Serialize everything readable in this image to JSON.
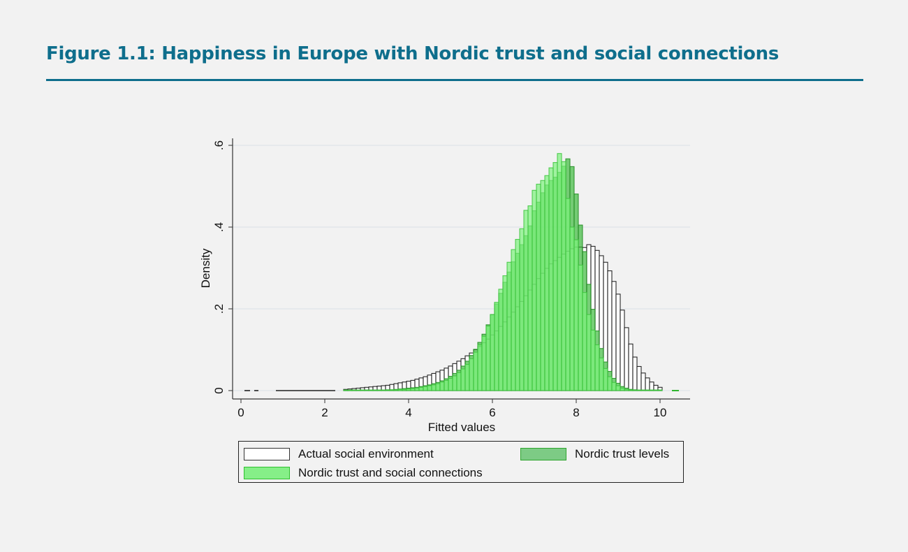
{
  "figure": {
    "title": "Figure 1.1: Happiness in Europe with Nordic trust and social connections"
  },
  "chart_data": {
    "type": "bar",
    "subtype": "overlaid histogram",
    "title": "Figure 1.1: Happiness in Europe with Nordic trust and social connections",
    "xlabel": "Fitted values",
    "ylabel": "Density",
    "xlim": [
      -0.2,
      10.7
    ],
    "ylim": [
      0,
      0.62
    ],
    "xticks": [
      0,
      2,
      4,
      6,
      8,
      10
    ],
    "xtick_labels": [
      "0",
      "2",
      "4",
      "6",
      "8",
      "10"
    ],
    "yticks": [
      0,
      0.2,
      0.4,
      0.6
    ],
    "ytick_labels": [
      "0",
      ".2",
      ".4",
      ".6"
    ],
    "grid": true,
    "bin_width": 0.1,
    "bin_start": 2.5,
    "legend_position": "bottom",
    "series": [
      {
        "name": "Actual social environment",
        "fill": "#ffffff",
        "fill_opacity": 0.0,
        "stroke": "#111111",
        "values": [
          0.003,
          0.004,
          0.005,
          0.006,
          0.007,
          0.008,
          0.009,
          0.01,
          0.011,
          0.012,
          0.013,
          0.015,
          0.017,
          0.019,
          0.021,
          0.023,
          0.025,
          0.028,
          0.031,
          0.034,
          0.038,
          0.042,
          0.046,
          0.05,
          0.055,
          0.06,
          0.066,
          0.072,
          0.078,
          0.085,
          0.092,
          0.1,
          0.108,
          0.117,
          0.126,
          0.136,
          0.146,
          0.157,
          0.168,
          0.18,
          0.192,
          0.205,
          0.218,
          0.232,
          0.246,
          0.26,
          0.274,
          0.287,
          0.299,
          0.31,
          0.318,
          0.326,
          0.334,
          0.341,
          0.347,
          0.351,
          0.351,
          0.35,
          0.357,
          0.353,
          0.343,
          0.33,
          0.314,
          0.293,
          0.267,
          0.236,
          0.197,
          0.154,
          0.114,
          0.082,
          0.059,
          0.043,
          0.031,
          0.021,
          0.013,
          0.008
        ]
      },
      {
        "name": "Nordic trust levels",
        "fill": "#2fb52f",
        "fill_opacity": 0.65,
        "stroke": "#1f8a1f",
        "values": [
          0.0,
          0.0,
          0.0,
          0.0,
          0.0,
          0.0,
          0.0,
          0.0,
          0.001,
          0.001,
          0.002,
          0.002,
          0.003,
          0.004,
          0.005,
          0.006,
          0.007,
          0.008,
          0.01,
          0.012,
          0.014,
          0.017,
          0.02,
          0.024,
          0.029,
          0.035,
          0.042,
          0.05,
          0.06,
          0.072,
          0.086,
          0.101,
          0.118,
          0.138,
          0.161,
          0.186,
          0.212,
          0.238,
          0.265,
          0.29,
          0.315,
          0.336,
          0.357,
          0.379,
          0.403,
          0.44,
          0.461,
          0.484,
          0.503,
          0.514,
          0.522,
          0.534,
          0.549,
          0.567,
          0.548,
          0.481,
          0.405,
          0.34,
          0.26,
          0.199,
          0.146,
          0.103,
          0.07,
          0.047,
          0.03,
          0.018,
          0.01,
          0.006,
          0.003,
          0.002,
          0.001,
          0.0,
          0.0,
          0.0,
          0.0,
          0.0
        ]
      },
      {
        "name": "Nordic trust and social connections",
        "fill": "#7ef27e",
        "fill_opacity": 0.7,
        "stroke": "#3cc43c",
        "values": [
          0.0,
          0.0,
          0.0,
          0.0,
          0.0,
          0.0,
          0.0,
          0.0,
          0.0,
          0.001,
          0.001,
          0.002,
          0.002,
          0.003,
          0.003,
          0.004,
          0.005,
          0.006,
          0.008,
          0.01,
          0.012,
          0.014,
          0.017,
          0.021,
          0.025,
          0.03,
          0.036,
          0.044,
          0.053,
          0.064,
          0.078,
          0.094,
          0.112,
          0.133,
          0.158,
          0.186,
          0.216,
          0.248,
          0.281,
          0.314,
          0.345,
          0.37,
          0.396,
          0.441,
          0.452,
          0.49,
          0.505,
          0.514,
          0.526,
          0.545,
          0.558,
          0.58,
          0.56,
          0.47,
          0.4,
          0.369,
          0.307,
          0.24,
          0.186,
          0.148,
          0.112,
          0.08,
          0.054,
          0.034,
          0.02,
          0.012,
          0.006,
          0.003,
          0.002,
          0.001,
          0.0,
          0.0,
          0.0,
          0.0,
          0.0,
          0.0
        ]
      }
    ]
  },
  "axes": {
    "xlabel": "Fitted values",
    "ylabel": "Density",
    "xtick_labels": [
      "0",
      "2",
      "4",
      "6",
      "8",
      "10"
    ],
    "ytick_labels": [
      "0",
      ".2",
      ".4",
      ".6"
    ]
  },
  "legend": {
    "items": [
      {
        "label": "Actual social environment",
        "swatch_fill": "#ffffff",
        "swatch_stroke": "#333333"
      },
      {
        "label": "Nordic trust levels",
        "swatch_fill": "#7dcb85",
        "swatch_stroke": "#2fa52f"
      },
      {
        "label": "Nordic trust and social connections",
        "swatch_fill": "#86ef88",
        "swatch_stroke": "#2fc02f"
      }
    ]
  }
}
